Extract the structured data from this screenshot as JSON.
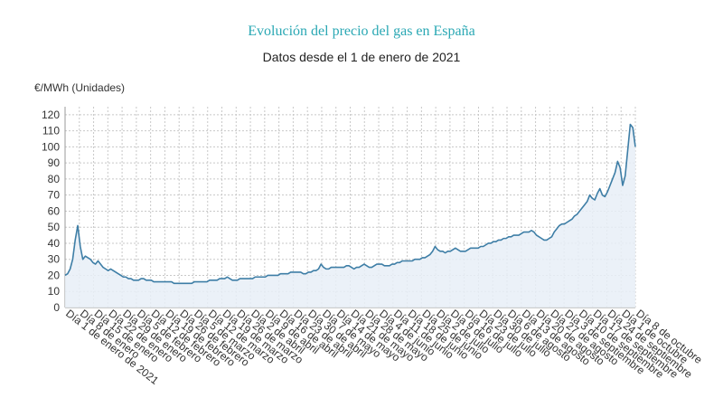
{
  "chart_data": {
    "type": "area",
    "title": "Evolución del precio del gas en España",
    "subtitle": "Datos desde el 1 de enero de 2021",
    "ylabel": "€/MWh (Unidades)",
    "xlabel": "",
    "ylim": [
      0,
      125
    ],
    "yticks": [
      0,
      10,
      20,
      30,
      40,
      50,
      60,
      70,
      80,
      90,
      100,
      110,
      120
    ],
    "grid": true,
    "legend": "none",
    "colors": {
      "line": "#3e7ea6",
      "fill": "#e8eef7",
      "grid": "#c8c8c8",
      "title": "#2aa8b4"
    },
    "x_tick_labels": [
      "Día 1 de enero de 2021",
      "Día 8 de enero",
      "Día 15 de enero",
      "Día 22 de enero",
      "Día 29 de enero",
      "Día 5 de febrero",
      "Día 12 de febrero",
      "Día 19 de febrero",
      "Día 26 de febrero",
      "Día 5 de marzo",
      "Día 12 de marzo",
      "Día 19 de marzo",
      "Día 26 de marzo",
      "Día 2 de abril",
      "Día 9 de abril",
      "Día 16 de abril",
      "Día 23 de abril",
      "Día 30 de abril",
      "Día 7 de mayo",
      "Día 14 de mayo",
      "Día 21 de mayo",
      "Día 28 de mayo",
      "Día 4 de junio",
      "Día 11 de junio",
      "Día 18 de junio",
      "Día 25 de junio",
      "Día 2 de julio",
      "Día 9 de julio",
      "Día 16 de julio",
      "Día 23 de julio",
      "Día 30 de julio",
      "Día 6 de agosto",
      "Día 13 de agosto",
      "Día 20 de agosto",
      "Día 27 de agosto",
      "Día 3 de septiembre",
      "Día 10 de septiembre",
      "Día 17 de septiembre",
      "Día 24 de septiembre",
      "Día 1 de octubre",
      "Día 8 de octubre"
    ],
    "values": [
      20,
      21,
      24,
      30,
      42,
      51,
      38,
      30,
      32,
      31,
      30,
      28,
      27,
      29,
      27,
      25,
      24,
      23,
      24,
      23,
      22,
      21,
      20,
      19,
      19,
      18,
      18,
      17,
      17,
      17,
      18,
      18,
      17,
      17,
      17,
      16,
      16,
      16,
      16,
      16,
      16,
      16,
      16,
      15,
      15,
      15,
      15,
      15,
      15,
      15,
      15,
      16,
      16,
      16,
      16,
      16,
      16,
      17,
      17,
      17,
      17,
      18,
      18,
      18,
      19,
      18,
      17,
      17,
      17,
      18,
      18,
      18,
      18,
      18,
      18,
      19,
      19,
      19,
      19,
      19,
      20,
      20,
      20,
      20,
      20,
      21,
      21,
      21,
      21,
      22,
      22,
      22,
      22,
      22,
      21,
      21,
      22,
      22,
      23,
      23,
      24,
      27,
      25,
      24,
      24,
      25,
      25,
      25,
      25,
      25,
      25,
      26,
      26,
      25,
      24,
      25,
      25,
      26,
      27,
      26,
      25,
      25,
      26,
      27,
      27,
      27,
      26,
      26,
      26,
      27,
      27,
      28,
      28,
      29,
      29,
      29,
      29,
      29,
      30,
      30,
      30,
      31,
      31,
      32,
      33,
      35,
      38,
      36,
      35,
      35,
      34,
      35,
      35,
      36,
      37,
      36,
      35,
      35,
      35,
      36,
      37,
      37,
      37,
      37,
      38,
      38,
      39,
      40,
      40,
      41,
      41,
      42,
      42,
      43,
      43,
      44,
      44,
      45,
      45,
      45,
      46,
      47,
      47,
      47,
      48,
      47,
      45,
      44,
      43,
      42,
      42,
      43,
      44,
      47,
      49,
      51,
      52,
      52,
      53,
      54,
      55,
      57,
      58,
      60,
      62,
      64,
      66,
      70,
      68,
      67,
      71,
      74,
      70,
      69,
      72,
      76,
      80,
      84,
      91,
      87,
      76,
      82,
      98,
      114,
      112,
      100
    ]
  }
}
